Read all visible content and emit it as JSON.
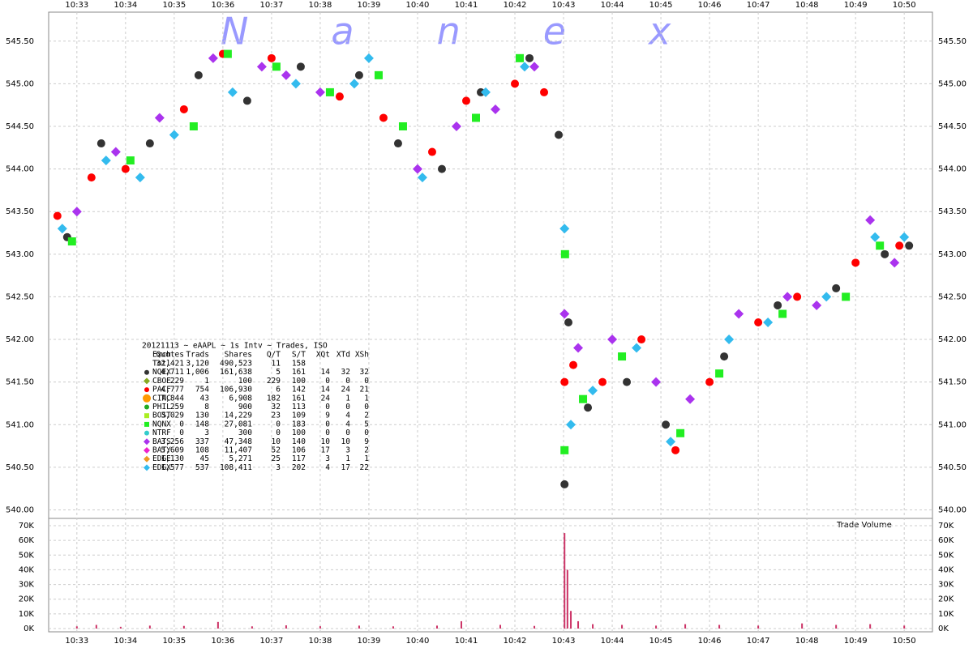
{
  "chart_data": {
    "type": "scatter",
    "watermark": "Nanex",
    "xlim": [
      632.42,
      650.58
    ],
    "xticks": [
      {
        "value": 633,
        "label": "10:33"
      },
      {
        "value": 634,
        "label": "10:34"
      },
      {
        "value": 635,
        "label": "10:35"
      },
      {
        "value": 636,
        "label": "10:36"
      },
      {
        "value": 637,
        "label": "10:37"
      },
      {
        "value": 638,
        "label": "10:38"
      },
      {
        "value": 639,
        "label": "10:39"
      },
      {
        "value": 640,
        "label": "10:40"
      },
      {
        "value": 641,
        "label": "10:41"
      },
      {
        "value": 642,
        "label": "10:42"
      },
      {
        "value": 643,
        "label": "10:43"
      },
      {
        "value": 644,
        "label": "10:44"
      },
      {
        "value": 645,
        "label": "10:45"
      },
      {
        "value": 646,
        "label": "10:46"
      },
      {
        "value": 647,
        "label": "10:47"
      },
      {
        "value": 648,
        "label": "10:48"
      },
      {
        "value": 649,
        "label": "10:49"
      },
      {
        "value": 650,
        "label": "10:50"
      }
    ],
    "ylim": [
      539.9,
      545.84
    ],
    "yticks": [
      {
        "value": 540,
        "label": "540.00"
      },
      {
        "value": 540.5,
        "label": "540.50"
      },
      {
        "value": 541,
        "label": "541.00"
      },
      {
        "value": 541.5,
        "label": "541.50"
      },
      {
        "value": 542,
        "label": "542.00"
      },
      {
        "value": 542.5,
        "label": "542.50"
      },
      {
        "value": 543,
        "label": "543.00"
      },
      {
        "value": 543.5,
        "label": "543.50"
      },
      {
        "value": 544,
        "label": "544.00"
      },
      {
        "value": 544.5,
        "label": "544.50"
      },
      {
        "value": 545,
        "label": "545.00"
      },
      {
        "value": 545.5,
        "label": "545.50"
      }
    ],
    "grid": true,
    "series": [
      {
        "name": "NQEX",
        "color": "#333333",
        "marker": "circle",
        "x": [
          632.8,
          633.5,
          634.5,
          635.5,
          636.5,
          637.6,
          638.8,
          639.6,
          640.5,
          641.3,
          642.3,
          642.9,
          643.02,
          643.1,
          643.5,
          644.3,
          645.1,
          646.3,
          647.4,
          648.6,
          649.6,
          650.1
        ],
        "values": [
          543.2,
          544.3,
          544.3,
          545.1,
          544.8,
          545.2,
          545.1,
          544.3,
          544.0,
          544.9,
          545.3,
          544.4,
          540.3,
          542.2,
          541.2,
          541.5,
          541.0,
          541.8,
          542.4,
          542.6,
          543.0,
          543.1
        ]
      },
      {
        "name": "PACF",
        "color": "#ff0000",
        "marker": "circle",
        "x": [
          632.6,
          633.3,
          634.0,
          635.2,
          636.0,
          637.0,
          638.4,
          639.3,
          640.3,
          641.0,
          642.0,
          642.6,
          643.02,
          643.2,
          643.8,
          644.6,
          645.3,
          646.0,
          647.0,
          647.8,
          649.0,
          649.9
        ],
        "values": [
          543.45,
          543.9,
          544.0,
          544.7,
          545.35,
          545.3,
          544.85,
          544.6,
          544.2,
          544.8,
          545.0,
          544.9,
          541.5,
          541.7,
          541.5,
          542.0,
          540.7,
          541.5,
          542.2,
          542.5,
          542.9,
          543.1
        ]
      },
      {
        "name": "BATS",
        "color": "#aa33ee",
        "marker": "diamond",
        "x": [
          633.0,
          633.8,
          634.7,
          635.8,
          636.8,
          637.3,
          638.0,
          640.0,
          640.8,
          641.6,
          642.4,
          643.02,
          643.3,
          644.0,
          644.9,
          645.6,
          646.6,
          647.6,
          648.2,
          649.3,
          649.8
        ],
        "values": [
          543.5,
          544.2,
          544.6,
          545.3,
          545.2,
          545.1,
          544.9,
          544.0,
          544.5,
          544.7,
          545.2,
          542.3,
          541.9,
          542.0,
          541.5,
          541.3,
          542.3,
          542.5,
          542.4,
          543.4,
          542.9
        ]
      },
      {
        "name": "EDGX",
        "color": "#33bbee",
        "marker": "diamond",
        "x": [
          632.7,
          633.6,
          634.3,
          635.0,
          636.2,
          637.5,
          638.7,
          639.0,
          640.1,
          641.4,
          642.2,
          643.02,
          643.15,
          643.6,
          644.5,
          645.2,
          646.4,
          647.2,
          648.4,
          649.4,
          650.0
        ],
        "values": [
          543.3,
          544.1,
          543.9,
          544.4,
          544.9,
          545.0,
          545.0,
          545.3,
          543.9,
          544.9,
          545.2,
          543.3,
          541.0,
          541.4,
          541.9,
          540.8,
          542.0,
          542.2,
          542.5,
          543.2,
          543.2
        ]
      },
      {
        "name": "NQNX",
        "color": "#22ee22",
        "marker": "square",
        "x": [
          632.9,
          634.1,
          635.4,
          636.1,
          637.1,
          638.2,
          639.2,
          639.7,
          641.2,
          642.1,
          643.02,
          643.03,
          643.4,
          644.2,
          645.4,
          646.2,
          647.5,
          648.8,
          649.5
        ],
        "values": [
          543.15,
          544.1,
          544.5,
          545.35,
          545.2,
          544.9,
          545.1,
          544.5,
          544.6,
          545.3,
          540.7,
          543.0,
          541.3,
          541.8,
          540.9,
          541.6,
          542.3,
          542.5,
          543.1
        ]
      }
    ],
    "volume": {
      "label": "Trade Volume",
      "color": "#cc3366",
      "ylim": [
        0,
        70000
      ],
      "yticks": [
        {
          "value": 0,
          "label": "0K"
        },
        {
          "value": 10000,
          "label": "10K"
        },
        {
          "value": 20000,
          "label": "20K"
        },
        {
          "value": 30000,
          "label": "30K"
        },
        {
          "value": 40000,
          "label": "40K"
        },
        {
          "value": 50000,
          "label": "50K"
        },
        {
          "value": 60000,
          "label": "60K"
        },
        {
          "value": 70000,
          "label": "70K"
        }
      ],
      "x": [
        633.0,
        633.4,
        633.9,
        634.5,
        635.2,
        635.9,
        636.6,
        637.3,
        638.0,
        638.8,
        639.5,
        640.4,
        640.9,
        641.7,
        642.4,
        643.02,
        643.08,
        643.15,
        643.3,
        643.6,
        644.2,
        644.9,
        645.5,
        646.2,
        647.0,
        647.9,
        648.6,
        649.3,
        650.0
      ],
      "values": [
        1500,
        2500,
        1200,
        2000,
        1800,
        4500,
        1500,
        2200,
        1600,
        2000,
        1500,
        2000,
        5000,
        2500,
        1800,
        65000,
        40000,
        12000,
        5000,
        3000,
        2500,
        2000,
        3000,
        2500,
        2000,
        3500,
        2500,
        3000,
        2000
      ]
    },
    "legend_table": {
      "title": "20121113 ~ eAAPL ~ 1s Intv ~ Trades, ISO",
      "header": [
        "Exch",
        "Quotes",
        "Trads",
        "Shares",
        "Q/T",
        "S/T",
        "XQt",
        "XTd",
        "XSh"
      ],
      "rows": [
        {
          "cells": [
            "Totl",
            "32,421",
            "3,120",
            "490,523",
            "11",
            "158"
          ]
        },
        {
          "cells": [
            "NQEX",
            "4,711",
            "1,006",
            "161,638",
            "5",
            "161",
            "14",
            "32",
            "32"
          ],
          "color": "#333333",
          "marker": "circle"
        },
        {
          "cells": [
            "CBOE",
            "229",
            "1",
            "100",
            "229",
            "100",
            "0",
            "0",
            "0"
          ],
          "color": "#88aa22",
          "marker": "diamond"
        },
        {
          "cells": [
            "PACF",
            "4,777",
            "754",
            "106,930",
            "6",
            "142",
            "14",
            "24",
            "21"
          ],
          "color": "#ff0000",
          "marker": "circle"
        },
        {
          "cells": [
            "CINC",
            "7,844",
            "43",
            "6,908",
            "182",
            "161",
            "24",
            "1",
            "1"
          ],
          "color": "#ff9900",
          "marker": "big"
        },
        {
          "cells": [
            "PHIL",
            "259",
            "8",
            "900",
            "32",
            "113",
            "0",
            "0",
            "0"
          ],
          "color": "#22aa22",
          "marker": "circle"
        },
        {
          "cells": [
            "BOST",
            "3,029",
            "130",
            "14,229",
            "23",
            "109",
            "9",
            "4",
            "2"
          ],
          "color": "#aaee22",
          "marker": "square"
        },
        {
          "cells": [
            "NQNX",
            "0",
            "148",
            "27,081",
            "0",
            "183",
            "0",
            "4",
            "5"
          ],
          "color": "#22ee22",
          "marker": "square"
        },
        {
          "cells": [
            "NTRF",
            "0",
            "3",
            "300",
            "0",
            "100",
            "0",
            "0",
            "0"
          ],
          "color": "#33cccc",
          "marker": "circle"
        },
        {
          "cells": [
            "BATS",
            "3,256",
            "337",
            "47,348",
            "10",
            "140",
            "10",
            "10",
            "9"
          ],
          "color": "#aa33ee",
          "marker": "diamond"
        },
        {
          "cells": [
            "BATY",
            "5,609",
            "108",
            "11,407",
            "52",
            "106",
            "17",
            "3",
            "2"
          ],
          "color": "#ee22cc",
          "marker": "diamond"
        },
        {
          "cells": [
            "EDGE",
            "1,130",
            "45",
            "5,271",
            "25",
            "117",
            "3",
            "1",
            "1"
          ],
          "color": "#ee9922",
          "marker": "diamond"
        },
        {
          "cells": [
            "EDGX",
            "1,577",
            "537",
            "108,411",
            "3",
            "202",
            "4",
            "17",
            "22"
          ],
          "color": "#33bbee",
          "marker": "diamond"
        }
      ]
    }
  }
}
